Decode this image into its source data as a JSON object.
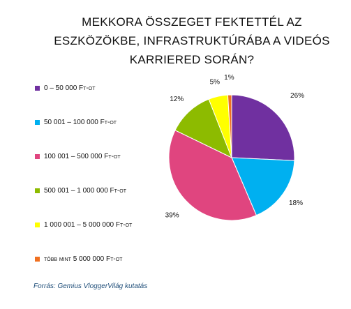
{
  "chart_data": {
    "type": "pie",
    "title": [
      "MEKKORA ÖSSZEGET FEKTETTÉL AZ",
      "ESZKÖZÖKBE, INFRASTRUKTÚRÁBA A VIDEÓS",
      "KARRIERED SORÁN?"
    ],
    "categories": [
      "0 – 50 000 Ft-ot",
      "50 001 – 100 000 Ft-ot",
      "100 001 – 500 000 Ft-ot",
      "500 001 – 1 000 000 Ft-ot",
      "1 000 001 – 5 000 000 Ft-ot",
      "több mint 5 000 000 Ft-ot"
    ],
    "values": [
      26,
      18,
      39,
      12,
      5,
      1
    ],
    "data_labels": [
      "26%",
      "18%",
      "39%",
      "12%",
      "5%",
      "1%"
    ],
    "colors": [
      "#7030a0",
      "#00b0f0",
      "#e0457f",
      "#8dbb00",
      "#ffff00",
      "#f07020"
    ],
    "legend_position": "left"
  },
  "source": "Forrás: Gemius VloggerVilág kutatás"
}
